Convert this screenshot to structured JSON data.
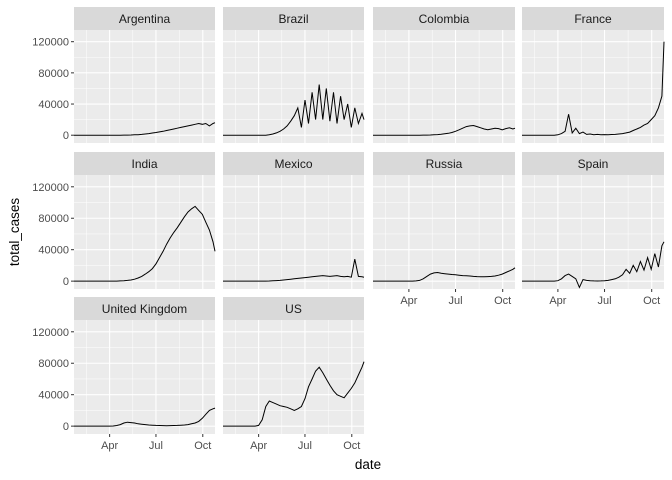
{
  "chart_data": {
    "type": "line",
    "facet_by": "country",
    "ncol": 4,
    "xlabel": "date",
    "ylabel": "total_cases",
    "x_range": [
      "2020-01-22",
      "2020-10-25"
    ],
    "ylim": [
      -10000,
      135000
    ],
    "y_ticks": [
      0,
      40000,
      80000,
      120000
    ],
    "y_tick_labels": [
      "0",
      "40000",
      "80000",
      "120000"
    ],
    "x_ticks": [
      "2020-04-01",
      "2020-07-01",
      "2020-10-01"
    ],
    "x_tick_labels": [
      "Apr",
      "Jul",
      "Oct"
    ],
    "grid": true,
    "colors": {
      "panel": "#ebebeb",
      "strip": "#d9d9d9",
      "grid": "#ffffff",
      "line": "#000000"
    },
    "series": [
      {
        "name": "Argentina",
        "date_start": "2020-01-22",
        "date_step_days": 7,
        "values": [
          0,
          0,
          0,
          0,
          0,
          0,
          0,
          0,
          0,
          0,
          0,
          0,
          0,
          50,
          100,
          200,
          300,
          500,
          700,
          1000,
          1500,
          2000,
          2800,
          3500,
          4200,
          5000,
          6000,
          7000,
          8000,
          9000,
          10000,
          11000,
          12000,
          13000,
          14000,
          15000,
          14000,
          15000,
          12000,
          15000,
          16000
        ]
      },
      {
        "name": "Brazil",
        "date_start": "2020-01-22",
        "date_step_days": 7,
        "values": [
          0,
          0,
          0,
          0,
          0,
          0,
          0,
          0,
          0,
          0,
          0,
          0,
          0,
          500,
          1500,
          3000,
          5000,
          8000,
          12000,
          18000,
          25000,
          35000,
          10000,
          45000,
          15000,
          55000,
          20000,
          65000,
          20000,
          60000,
          18000,
          55000,
          15000,
          50000,
          20000,
          40000,
          10000,
          35000,
          15000,
          28000,
          20000
        ]
      },
      {
        "name": "Colombia",
        "date_start": "2020-01-22",
        "date_step_days": 7,
        "values": [
          0,
          0,
          0,
          0,
          0,
          0,
          0,
          0,
          0,
          0,
          0,
          0,
          0,
          0,
          100,
          200,
          300,
          500,
          800,
          1200,
          1800,
          2500,
          3500,
          5000,
          7000,
          9000,
          11000,
          12000,
          12500,
          11000,
          9500,
          8000,
          7000,
          8000,
          9000,
          8500,
          7000,
          8500,
          9500,
          8000,
          9000
        ]
      },
      {
        "name": "France",
        "date_start": "2020-01-22",
        "date_step_days": 7,
        "values": [
          0,
          0,
          0,
          0,
          0,
          0,
          0,
          0,
          0,
          0,
          500,
          2000,
          5000,
          27000,
          3000,
          9000,
          2000,
          4000,
          1000,
          1500,
          500,
          1000,
          600,
          800,
          700,
          900,
          1000,
          1500,
          2000,
          3000,
          4000,
          6000,
          8000,
          10000,
          13000,
          15000,
          20000,
          25000,
          35000,
          50000,
          120000
        ]
      },
      {
        "name": "India",
        "date_start": "2020-01-22",
        "date_step_days": 7,
        "values": [
          0,
          0,
          0,
          0,
          0,
          0,
          0,
          0,
          0,
          0,
          0,
          50,
          100,
          300,
          600,
          1000,
          1500,
          2500,
          4000,
          6000,
          9000,
          12000,
          16000,
          22000,
          30000,
          38000,
          47000,
          55000,
          62000,
          68000,
          75000,
          82000,
          88000,
          92000,
          95000,
          90000,
          85000,
          75000,
          65000,
          50000,
          38000
        ]
      },
      {
        "name": "Mexico",
        "date_start": "2020-01-22",
        "date_step_days": 7,
        "values": [
          0,
          0,
          0,
          0,
          0,
          0,
          0,
          0,
          0,
          0,
          0,
          50,
          100,
          200,
          400,
          700,
          1000,
          1500,
          2000,
          2500,
          3000,
          3500,
          4000,
          4500,
          5000,
          5500,
          6000,
          6500,
          7000,
          6500,
          6000,
          6500,
          7000,
          6000,
          5500,
          6000,
          5000,
          28000,
          6000,
          5500,
          5000
        ]
      },
      {
        "name": "Russia",
        "date_start": "2020-01-22",
        "date_step_days": 7,
        "values": [
          0,
          0,
          0,
          0,
          0,
          0,
          0,
          0,
          0,
          0,
          0,
          100,
          300,
          1000,
          3000,
          6000,
          9000,
          10500,
          11000,
          10000,
          9500,
          9000,
          8500,
          8000,
          7500,
          7000,
          6800,
          6500,
          6000,
          5800,
          5600,
          5500,
          5800,
          6000,
          6500,
          7500,
          9000,
          11000,
          13000,
          15000,
          17000
        ]
      },
      {
        "name": "Spain",
        "date_start": "2020-01-22",
        "date_step_days": 7,
        "values": [
          0,
          0,
          0,
          0,
          0,
          0,
          0,
          0,
          0,
          0,
          500,
          3000,
          7000,
          9000,
          6000,
          3000,
          -8000,
          2000,
          1000,
          500,
          300,
          200,
          300,
          500,
          1000,
          2000,
          3000,
          5000,
          8000,
          15000,
          10000,
          20000,
          12000,
          25000,
          14000,
          30000,
          15000,
          35000,
          18000,
          45000,
          50000
        ]
      },
      {
        "name": "United Kingdom",
        "date_start": "2020-01-22",
        "date_step_days": 7,
        "values": [
          0,
          0,
          0,
          0,
          0,
          0,
          0,
          0,
          0,
          0,
          0,
          200,
          800,
          2000,
          4000,
          5000,
          4500,
          4000,
          3000,
          2500,
          2000,
          1500,
          1200,
          1000,
          800,
          700,
          600,
          700,
          800,
          1000,
          1200,
          1500,
          2000,
          3000,
          4000,
          6000,
          10000,
          15000,
          20000,
          22000,
          23000
        ]
      },
      {
        "name": "US",
        "date_start": "2020-01-22",
        "date_step_days": 7,
        "values": [
          0,
          0,
          0,
          0,
          0,
          0,
          0,
          0,
          0,
          0,
          1000,
          8000,
          25000,
          32000,
          30000,
          28000,
          26000,
          25000,
          24000,
          22000,
          20000,
          22000,
          25000,
          35000,
          50000,
          60000,
          70000,
          75000,
          68000,
          60000,
          52000,
          45000,
          40000,
          38000,
          36000,
          42000,
          48000,
          55000,
          65000,
          75000,
          82000
        ]
      }
    ]
  }
}
